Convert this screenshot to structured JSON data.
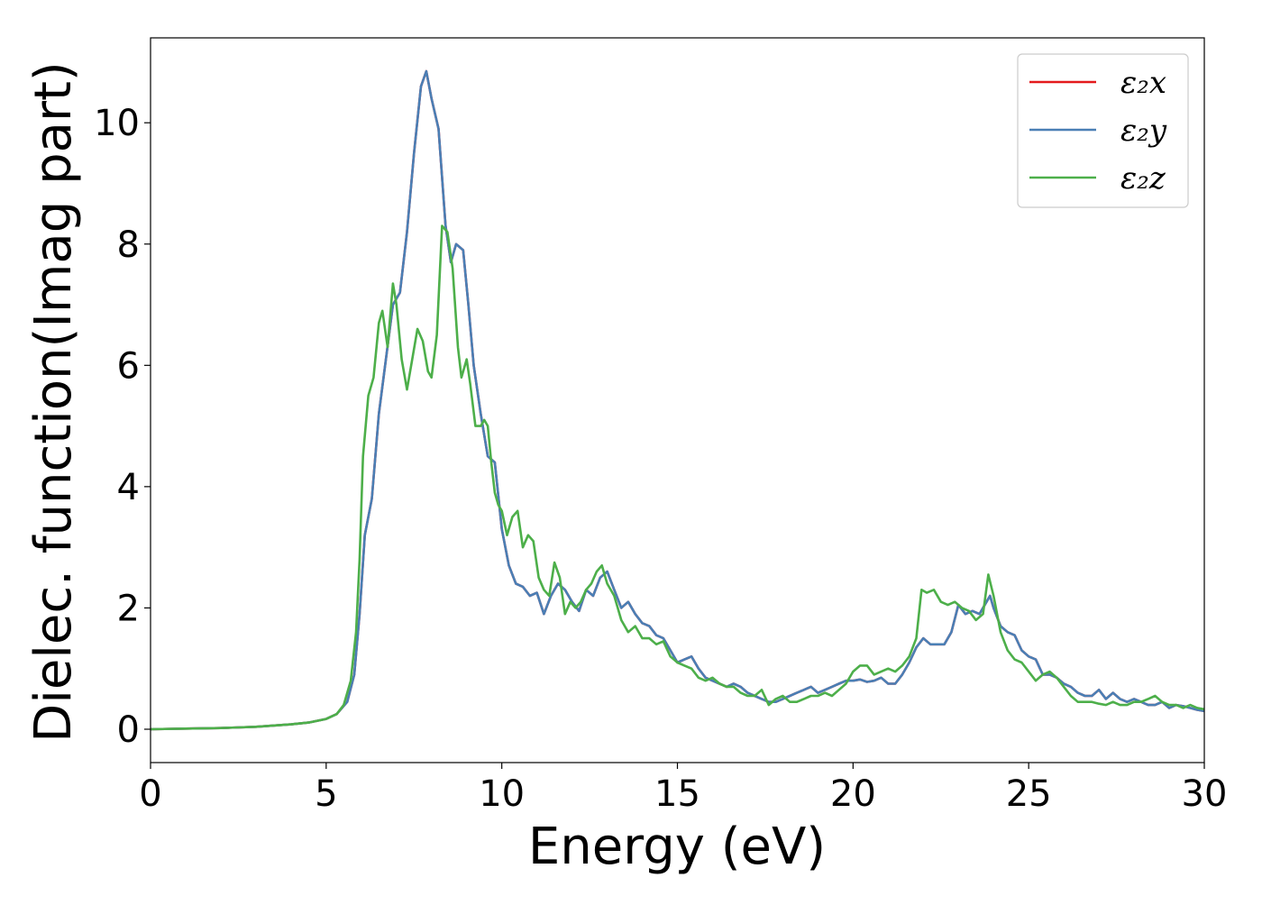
{
  "chart_data": {
    "type": "line",
    "xlabel": "Energy (eV)",
    "ylabel": "Dielec. function(Imag part)",
    "xlim": [
      0,
      30
    ],
    "ylim": [
      -0.55,
      11.4
    ],
    "x_ticks": [
      0,
      5,
      10,
      15,
      20,
      25,
      30
    ],
    "x_tick_labels": [
      "0",
      "5",
      "10",
      "15",
      "20",
      "25",
      "30"
    ],
    "y_ticks": [
      0,
      2,
      4,
      6,
      8,
      10
    ],
    "y_tick_labels": [
      "0",
      "2",
      "4",
      "6",
      "8",
      "10"
    ],
    "grid": false,
    "legend_position": "top-right",
    "series": [
      {
        "name": "ε₂x",
        "color": "#e41a1c",
        "x": [
          0,
          1,
          2,
          3,
          4,
          4.5,
          5,
          5.3,
          5.6,
          5.8,
          5.95,
          6.1,
          6.2,
          6.3,
          6.5,
          6.7,
          6.9,
          7.1,
          7.3,
          7.5,
          7.7,
          7.85,
          8.0,
          8.2,
          8.4,
          8.55,
          8.7,
          8.9,
          9.05,
          9.2,
          9.4,
          9.6,
          9.8,
          10.0,
          10.2,
          10.4,
          10.6,
          10.8,
          11.0,
          11.2,
          11.4,
          11.6,
          11.8,
          12.0,
          12.2,
          12.4,
          12.6,
          12.8,
          13.0,
          13.2,
          13.4,
          13.6,
          13.8,
          14.0,
          14.2,
          14.4,
          14.6,
          14.8,
          15.0,
          15.2,
          15.4,
          15.6,
          15.8,
          16.0,
          16.2,
          16.4,
          16.6,
          16.8,
          17.0,
          17.2,
          17.4,
          17.6,
          17.8,
          18.0,
          18.2,
          18.4,
          18.6,
          18.8,
          19.0,
          19.2,
          19.4,
          19.6,
          19.8,
          20.0,
          20.2,
          20.4,
          20.6,
          20.8,
          21.0,
          21.2,
          21.4,
          21.6,
          21.8,
          22.0,
          22.2,
          22.4,
          22.6,
          22.8,
          23.0,
          23.2,
          23.4,
          23.6,
          23.8,
          23.9,
          24.0,
          24.2,
          24.4,
          24.6,
          24.8,
          25.0,
          25.2,
          25.4,
          25.6,
          25.8,
          26.0,
          26.2,
          26.4,
          26.6,
          26.8,
          27.0,
          27.2,
          27.4,
          27.6,
          27.8,
          28.0,
          28.2,
          28.4,
          28.6,
          28.8,
          29.0,
          29.2,
          29.4,
          29.6,
          29.8,
          30.0
        ],
        "values": [
          0.0,
          0.01,
          0.02,
          0.04,
          0.08,
          0.11,
          0.17,
          0.25,
          0.45,
          0.9,
          1.9,
          3.2,
          3.5,
          3.8,
          5.2,
          6.1,
          7.0,
          7.2,
          8.2,
          9.5,
          10.6,
          10.85,
          10.4,
          9.9,
          8.3,
          7.7,
          8.0,
          7.9,
          7.0,
          6.0,
          5.2,
          4.5,
          4.4,
          3.3,
          2.7,
          2.4,
          2.35,
          2.2,
          2.25,
          1.9,
          2.2,
          2.4,
          2.3,
          2.1,
          1.95,
          2.3,
          2.2,
          2.5,
          2.6,
          2.3,
          2.0,
          2.1,
          1.9,
          1.75,
          1.7,
          1.55,
          1.5,
          1.3,
          1.1,
          1.15,
          1.2,
          1.0,
          0.85,
          0.8,
          0.75,
          0.7,
          0.75,
          0.7,
          0.6,
          0.55,
          0.5,
          0.45,
          0.45,
          0.5,
          0.55,
          0.6,
          0.65,
          0.7,
          0.6,
          0.65,
          0.7,
          0.75,
          0.8,
          0.8,
          0.82,
          0.78,
          0.8,
          0.85,
          0.75,
          0.75,
          0.9,
          1.1,
          1.35,
          1.5,
          1.4,
          1.4,
          1.4,
          1.6,
          2.05,
          1.9,
          1.95,
          1.9,
          2.1,
          2.2,
          2.0,
          1.7,
          1.6,
          1.55,
          1.3,
          1.2,
          1.15,
          0.9,
          0.9,
          0.85,
          0.75,
          0.7,
          0.6,
          0.55,
          0.55,
          0.65,
          0.5,
          0.6,
          0.5,
          0.45,
          0.5,
          0.45,
          0.4,
          0.4,
          0.45,
          0.35,
          0.4,
          0.38,
          0.35,
          0.32,
          0.3
        ]
      },
      {
        "name": "ε₂y",
        "color": "#4a7fb5",
        "x": [
          0,
          1,
          2,
          3,
          4,
          4.5,
          5,
          5.3,
          5.6,
          5.8,
          5.95,
          6.1,
          6.2,
          6.3,
          6.5,
          6.7,
          6.9,
          7.1,
          7.3,
          7.5,
          7.7,
          7.85,
          8.0,
          8.2,
          8.4,
          8.55,
          8.7,
          8.9,
          9.05,
          9.2,
          9.4,
          9.6,
          9.8,
          10.0,
          10.2,
          10.4,
          10.6,
          10.8,
          11.0,
          11.2,
          11.4,
          11.6,
          11.8,
          12.0,
          12.2,
          12.4,
          12.6,
          12.8,
          13.0,
          13.2,
          13.4,
          13.6,
          13.8,
          14.0,
          14.2,
          14.4,
          14.6,
          14.8,
          15.0,
          15.2,
          15.4,
          15.6,
          15.8,
          16.0,
          16.2,
          16.4,
          16.6,
          16.8,
          17.0,
          17.2,
          17.4,
          17.6,
          17.8,
          18.0,
          18.2,
          18.4,
          18.6,
          18.8,
          19.0,
          19.2,
          19.4,
          19.6,
          19.8,
          20.0,
          20.2,
          20.4,
          20.6,
          20.8,
          21.0,
          21.2,
          21.4,
          21.6,
          21.8,
          22.0,
          22.2,
          22.4,
          22.6,
          22.8,
          23.0,
          23.2,
          23.4,
          23.6,
          23.8,
          23.9,
          24.0,
          24.2,
          24.4,
          24.6,
          24.8,
          25.0,
          25.2,
          25.4,
          25.6,
          25.8,
          26.0,
          26.2,
          26.4,
          26.6,
          26.8,
          27.0,
          27.2,
          27.4,
          27.6,
          27.8,
          28.0,
          28.2,
          28.4,
          28.6,
          28.8,
          29.0,
          29.2,
          29.4,
          29.6,
          29.8,
          30.0
        ],
        "values": [
          0.0,
          0.01,
          0.02,
          0.04,
          0.08,
          0.11,
          0.17,
          0.25,
          0.45,
          0.9,
          1.9,
          3.2,
          3.5,
          3.8,
          5.2,
          6.1,
          7.0,
          7.2,
          8.2,
          9.5,
          10.6,
          10.85,
          10.4,
          9.9,
          8.3,
          7.7,
          8.0,
          7.9,
          7.0,
          6.0,
          5.2,
          4.5,
          4.4,
          3.3,
          2.7,
          2.4,
          2.35,
          2.2,
          2.25,
          1.9,
          2.2,
          2.4,
          2.3,
          2.1,
          1.95,
          2.3,
          2.2,
          2.5,
          2.6,
          2.3,
          2.0,
          2.1,
          1.9,
          1.75,
          1.7,
          1.55,
          1.5,
          1.3,
          1.1,
          1.15,
          1.2,
          1.0,
          0.85,
          0.8,
          0.75,
          0.7,
          0.75,
          0.7,
          0.6,
          0.55,
          0.5,
          0.45,
          0.45,
          0.5,
          0.55,
          0.6,
          0.65,
          0.7,
          0.6,
          0.65,
          0.7,
          0.75,
          0.8,
          0.8,
          0.82,
          0.78,
          0.8,
          0.85,
          0.75,
          0.75,
          0.9,
          1.1,
          1.35,
          1.5,
          1.4,
          1.4,
          1.4,
          1.6,
          2.05,
          1.9,
          1.95,
          1.9,
          2.1,
          2.2,
          2.0,
          1.7,
          1.6,
          1.55,
          1.3,
          1.2,
          1.15,
          0.9,
          0.9,
          0.85,
          0.75,
          0.7,
          0.6,
          0.55,
          0.55,
          0.65,
          0.5,
          0.6,
          0.5,
          0.45,
          0.5,
          0.45,
          0.4,
          0.4,
          0.45,
          0.35,
          0.4,
          0.38,
          0.35,
          0.32,
          0.3
        ]
      },
      {
        "name": "ε₂z",
        "color": "#4daf4a",
        "x": [
          0,
          1,
          2,
          3,
          4,
          4.5,
          5,
          5.3,
          5.5,
          5.7,
          5.85,
          5.95,
          6.05,
          6.2,
          6.35,
          6.5,
          6.6,
          6.75,
          6.9,
          7.0,
          7.15,
          7.3,
          7.45,
          7.6,
          7.75,
          7.9,
          8.0,
          8.15,
          8.3,
          8.45,
          8.6,
          8.75,
          8.85,
          9.0,
          9.1,
          9.25,
          9.4,
          9.5,
          9.6,
          9.7,
          9.8,
          9.9,
          10.0,
          10.15,
          10.3,
          10.45,
          10.6,
          10.75,
          10.9,
          11.05,
          11.2,
          11.35,
          11.5,
          11.65,
          11.8,
          11.95,
          12.1,
          12.25,
          12.4,
          12.55,
          12.7,
          12.85,
          13.0,
          13.2,
          13.4,
          13.6,
          13.8,
          14.0,
          14.2,
          14.4,
          14.6,
          14.8,
          15.0,
          15.2,
          15.4,
          15.6,
          15.8,
          16.0,
          16.2,
          16.4,
          16.6,
          16.8,
          17.0,
          17.2,
          17.4,
          17.6,
          17.8,
          18.0,
          18.2,
          18.4,
          18.6,
          18.8,
          19.0,
          19.2,
          19.4,
          19.6,
          19.8,
          20.0,
          20.2,
          20.4,
          20.6,
          20.8,
          21.0,
          21.2,
          21.4,
          21.6,
          21.8,
          21.95,
          22.1,
          22.3,
          22.5,
          22.7,
          22.9,
          23.1,
          23.3,
          23.5,
          23.7,
          23.85,
          24.0,
          24.2,
          24.4,
          24.6,
          24.8,
          25.0,
          25.2,
          25.4,
          25.6,
          25.8,
          26.0,
          26.2,
          26.4,
          26.6,
          26.8,
          27.0,
          27.2,
          27.4,
          27.6,
          27.8,
          28.0,
          28.2,
          28.4,
          28.6,
          28.8,
          29.0,
          29.2,
          29.4,
          29.6,
          29.8,
          30.0
        ],
        "values": [
          0.0,
          0.01,
          0.02,
          0.04,
          0.08,
          0.11,
          0.17,
          0.25,
          0.4,
          0.8,
          1.6,
          2.8,
          4.5,
          5.5,
          5.8,
          6.7,
          6.9,
          6.3,
          7.35,
          7.0,
          6.1,
          5.6,
          6.1,
          6.6,
          6.4,
          5.9,
          5.8,
          6.5,
          8.3,
          8.2,
          7.6,
          6.3,
          5.8,
          6.1,
          5.7,
          5.0,
          5.0,
          5.1,
          5.0,
          4.4,
          3.9,
          3.7,
          3.6,
          3.2,
          3.5,
          3.6,
          3.0,
          3.2,
          3.1,
          2.5,
          2.3,
          2.2,
          2.75,
          2.5,
          1.9,
          2.1,
          2.0,
          2.1,
          2.3,
          2.4,
          2.6,
          2.7,
          2.4,
          2.2,
          1.8,
          1.6,
          1.7,
          1.5,
          1.5,
          1.4,
          1.45,
          1.2,
          1.1,
          1.05,
          1.0,
          0.85,
          0.8,
          0.85,
          0.75,
          0.7,
          0.7,
          0.6,
          0.55,
          0.55,
          0.65,
          0.4,
          0.5,
          0.55,
          0.45,
          0.45,
          0.5,
          0.55,
          0.55,
          0.6,
          0.55,
          0.65,
          0.75,
          0.95,
          1.05,
          1.05,
          0.9,
          0.95,
          1.0,
          0.95,
          1.05,
          1.2,
          1.5,
          2.3,
          2.25,
          2.3,
          2.1,
          2.05,
          2.1,
          2.0,
          1.95,
          1.8,
          1.9,
          2.55,
          2.2,
          1.6,
          1.3,
          1.15,
          1.1,
          0.95,
          0.8,
          0.9,
          0.95,
          0.85,
          0.7,
          0.55,
          0.45,
          0.45,
          0.45,
          0.42,
          0.4,
          0.45,
          0.4,
          0.4,
          0.45,
          0.45,
          0.5,
          0.55,
          0.45,
          0.4,
          0.4,
          0.35,
          0.4,
          0.35,
          0.33
        ]
      }
    ]
  }
}
